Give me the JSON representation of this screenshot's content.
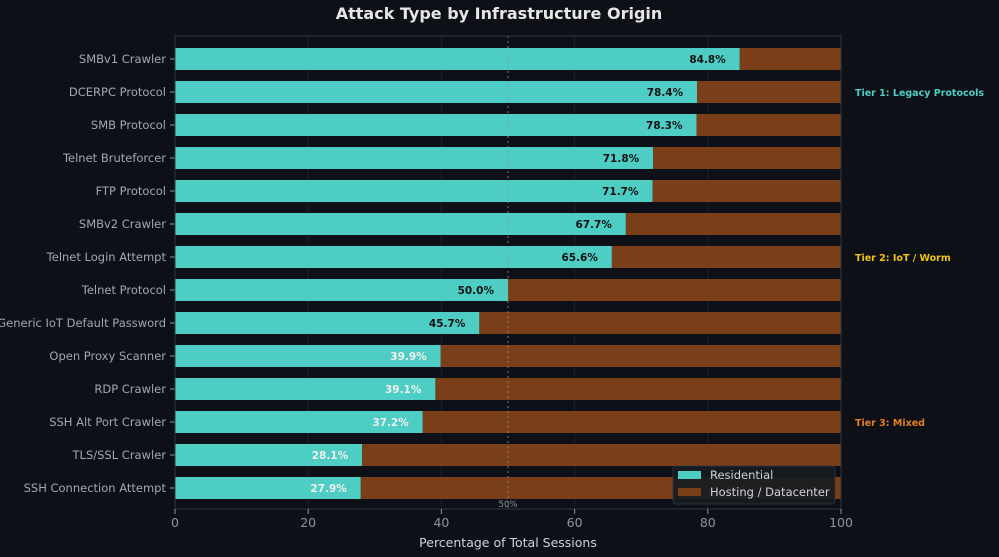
{
  "chart_data": {
    "type": "bar",
    "orientation": "horizontal",
    "stacked": true,
    "title": "Attack Type by Infrastructure Origin",
    "xlabel": "Percentage of Total Sessions",
    "ylabel": "",
    "xlim": [
      0,
      100
    ],
    "xticks": [
      "0",
      "20",
      "40",
      "60",
      "80",
      "100"
    ],
    "categories": [
      "SMBv1 Crawler",
      "DCERPC Protocol",
      "SMB Protocol",
      "Telnet Bruteforcer",
      "FTP Protocol",
      "SMBv2 Crawler",
      "Telnet Login Attempt",
      "Telnet Protocol",
      "Generic IoT Default Password",
      "Open Proxy Scanner",
      "RDP Crawler",
      "SSH Alt Port Crawler",
      "TLS/SSL Crawler",
      "SSH Connection Attempt"
    ],
    "series": [
      {
        "name": "Residential",
        "color": "#4ecdc4",
        "values": [
          84.8,
          78.4,
          78.3,
          71.8,
          71.7,
          67.7,
          65.6,
          50.0,
          45.7,
          39.9,
          39.1,
          37.2,
          28.1,
          27.9
        ]
      },
      {
        "name": "Hosting / Datacenter",
        "color": "#7a3e19",
        "values": [
          15.2,
          21.6,
          21.7,
          28.2,
          28.3,
          32.3,
          34.4,
          50.0,
          54.3,
          60.1,
          60.9,
          62.8,
          71.9,
          72.1
        ]
      }
    ],
    "data_labels": [
      "84.8%",
      "78.4%",
      "78.3%",
      "71.8%",
      "71.7%",
      "67.7%",
      "65.6%",
      "50.0%",
      "45.7%",
      "39.9%",
      "39.1%",
      "37.2%",
      "28.1%",
      "27.9%"
    ],
    "reference_line": {
      "x": 50,
      "label": "50%"
    },
    "annotations": [
      {
        "text": "Tier 1: Legacy Protocols",
        "category": "DCERPC Protocol",
        "color": "#4ecdc4"
      },
      {
        "text": "Tier 2: IoT / Worm",
        "category": "Telnet Login Attempt",
        "color": "#f1c40f"
      },
      {
        "text": "Tier 3: Mixed",
        "category": "SSH Alt Port Crawler",
        "color": "#e67e22"
      }
    ],
    "legend": {
      "placement": "lower-right",
      "entries": [
        "Residential",
        "Hosting / Datacenter"
      ]
    },
    "grid": true
  }
}
